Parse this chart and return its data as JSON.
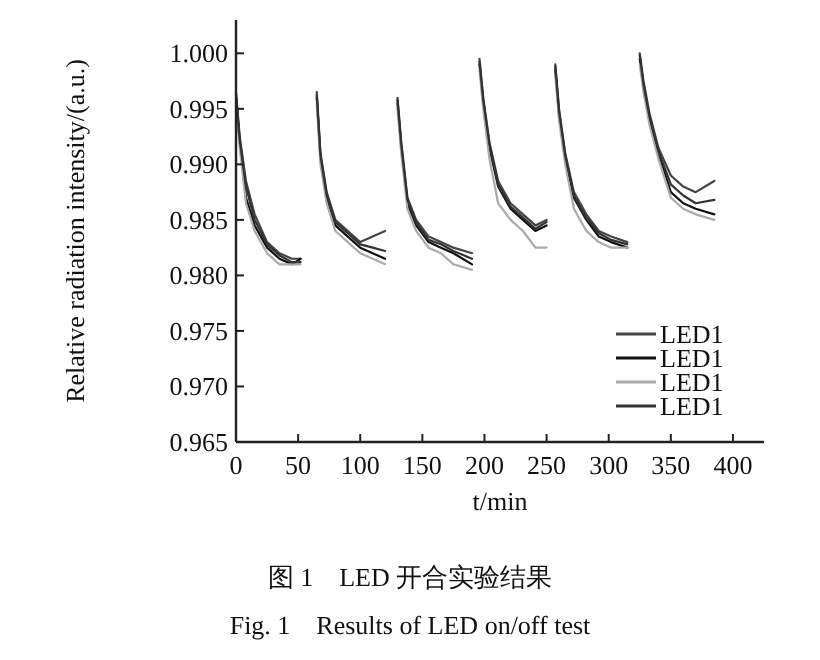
{
  "chart_data": {
    "type": "line",
    "xlabel": "t/min",
    "ylabel": "Relative radiation intensity/(a.u.)",
    "annotations": [
      "图 1　LED 开合实验结果",
      "Fig. 1　Results of LED on/off test"
    ],
    "x": [
      0,
      3,
      8,
      15,
      25,
      35,
      45,
      52,
      null,
      65,
      68,
      73,
      80,
      90,
      100,
      110,
      120,
      null,
      130,
      133,
      138,
      145,
      155,
      165,
      175,
      190,
      null,
      196,
      199,
      204,
      211,
      221,
      231,
      241,
      250,
      null,
      257,
      260,
      265,
      272,
      282,
      292,
      302,
      315,
      null,
      325,
      328,
      333,
      340,
      350,
      360,
      370,
      385
    ],
    "series": [
      {
        "name": "LED1",
        "color": "#444444",
        "values": [
          0.9965,
          0.9925,
          0.9885,
          0.9855,
          0.983,
          0.982,
          0.9815,
          0.9815,
          null,
          0.9965,
          0.991,
          0.9875,
          0.985,
          0.984,
          0.983,
          0.9835,
          0.984,
          null,
          0.996,
          0.992,
          0.987,
          0.985,
          0.9835,
          0.983,
          0.9825,
          0.982,
          null,
          0.9995,
          0.996,
          0.992,
          0.9885,
          0.9865,
          0.9855,
          0.9845,
          0.985,
          null,
          0.999,
          0.995,
          0.991,
          0.9875,
          0.9855,
          0.984,
          0.9835,
          0.983,
          null,
          1.0,
          0.9975,
          0.9945,
          0.9915,
          0.989,
          0.988,
          0.9875,
          0.9885
        ]
      },
      {
        "name": "LED1",
        "color": "#111111",
        "values": [
          0.996,
          0.992,
          0.987,
          0.9845,
          0.9825,
          0.9815,
          0.981,
          0.9815,
          null,
          0.996,
          0.9905,
          0.987,
          0.9845,
          0.9835,
          0.9825,
          0.982,
          0.9815,
          null,
          0.9955,
          0.9915,
          0.9865,
          0.9845,
          0.983,
          0.9825,
          0.982,
          0.981,
          null,
          0.999,
          0.9955,
          0.9915,
          0.988,
          0.986,
          0.985,
          0.984,
          0.9845,
          null,
          0.9985,
          0.9945,
          0.9905,
          0.987,
          0.985,
          0.9835,
          0.983,
          0.9825,
          null,
          0.9995,
          0.997,
          0.994,
          0.991,
          0.9875,
          0.9865,
          0.986,
          0.9855
        ]
      },
      {
        "name": "LED1",
        "color": "#aaaaaa",
        "values": [
          0.9955,
          0.9915,
          0.9865,
          0.984,
          0.982,
          0.981,
          0.981,
          0.981,
          null,
          0.9955,
          0.99,
          0.9865,
          0.984,
          0.983,
          0.982,
          0.9815,
          0.981,
          null,
          0.995,
          0.991,
          0.986,
          0.984,
          0.9825,
          0.982,
          0.981,
          0.9805,
          null,
          0.9985,
          0.995,
          0.9905,
          0.9865,
          0.985,
          0.984,
          0.9825,
          0.9825,
          null,
          0.998,
          0.994,
          0.99,
          0.986,
          0.984,
          0.983,
          0.9825,
          0.9825,
          null,
          0.999,
          0.9965,
          0.9935,
          0.9905,
          0.987,
          0.986,
          0.9855,
          0.985
        ]
      },
      {
        "name": "LED1",
        "color": "#333333",
        "values": [
          0.9962,
          0.9922,
          0.988,
          0.985,
          0.9828,
          0.9818,
          0.9812,
          0.9812,
          null,
          0.9962,
          0.9908,
          0.9872,
          0.9848,
          0.9838,
          0.9828,
          0.9825,
          0.9822,
          null,
          0.9958,
          0.9918,
          0.9868,
          0.9848,
          0.9832,
          0.9828,
          0.9822,
          0.9815,
          null,
          0.9992,
          0.9958,
          0.9918,
          0.9882,
          0.9862,
          0.9852,
          0.9842,
          0.9848,
          null,
          0.9988,
          0.9948,
          0.9908,
          0.9872,
          0.9852,
          0.9838,
          0.9832,
          0.9828,
          null,
          0.9998,
          0.9972,
          0.9942,
          0.9912,
          0.9882,
          0.9872,
          0.9865,
          0.9868
        ]
      }
    ],
    "xlim": [
      0,
      425
    ],
    "ylim": [
      0.965,
      1.003
    ],
    "xticks": [
      0,
      50,
      100,
      150,
      200,
      250,
      300,
      350,
      400
    ],
    "yticks": [
      {
        "value": 0.965,
        "label": "0.965"
      },
      {
        "value": 0.97,
        "label": "0.970"
      },
      {
        "value": 0.975,
        "label": "0.975"
      },
      {
        "value": 0.98,
        "label": "0.980"
      },
      {
        "value": 0.985,
        "label": "0.985"
      },
      {
        "value": 0.99,
        "label": "0.990"
      },
      {
        "value": 0.995,
        "label": "0.995"
      },
      {
        "value": 1.0,
        "label": "1.000"
      }
    ],
    "legend": "bottom right",
    "grid": false
  }
}
